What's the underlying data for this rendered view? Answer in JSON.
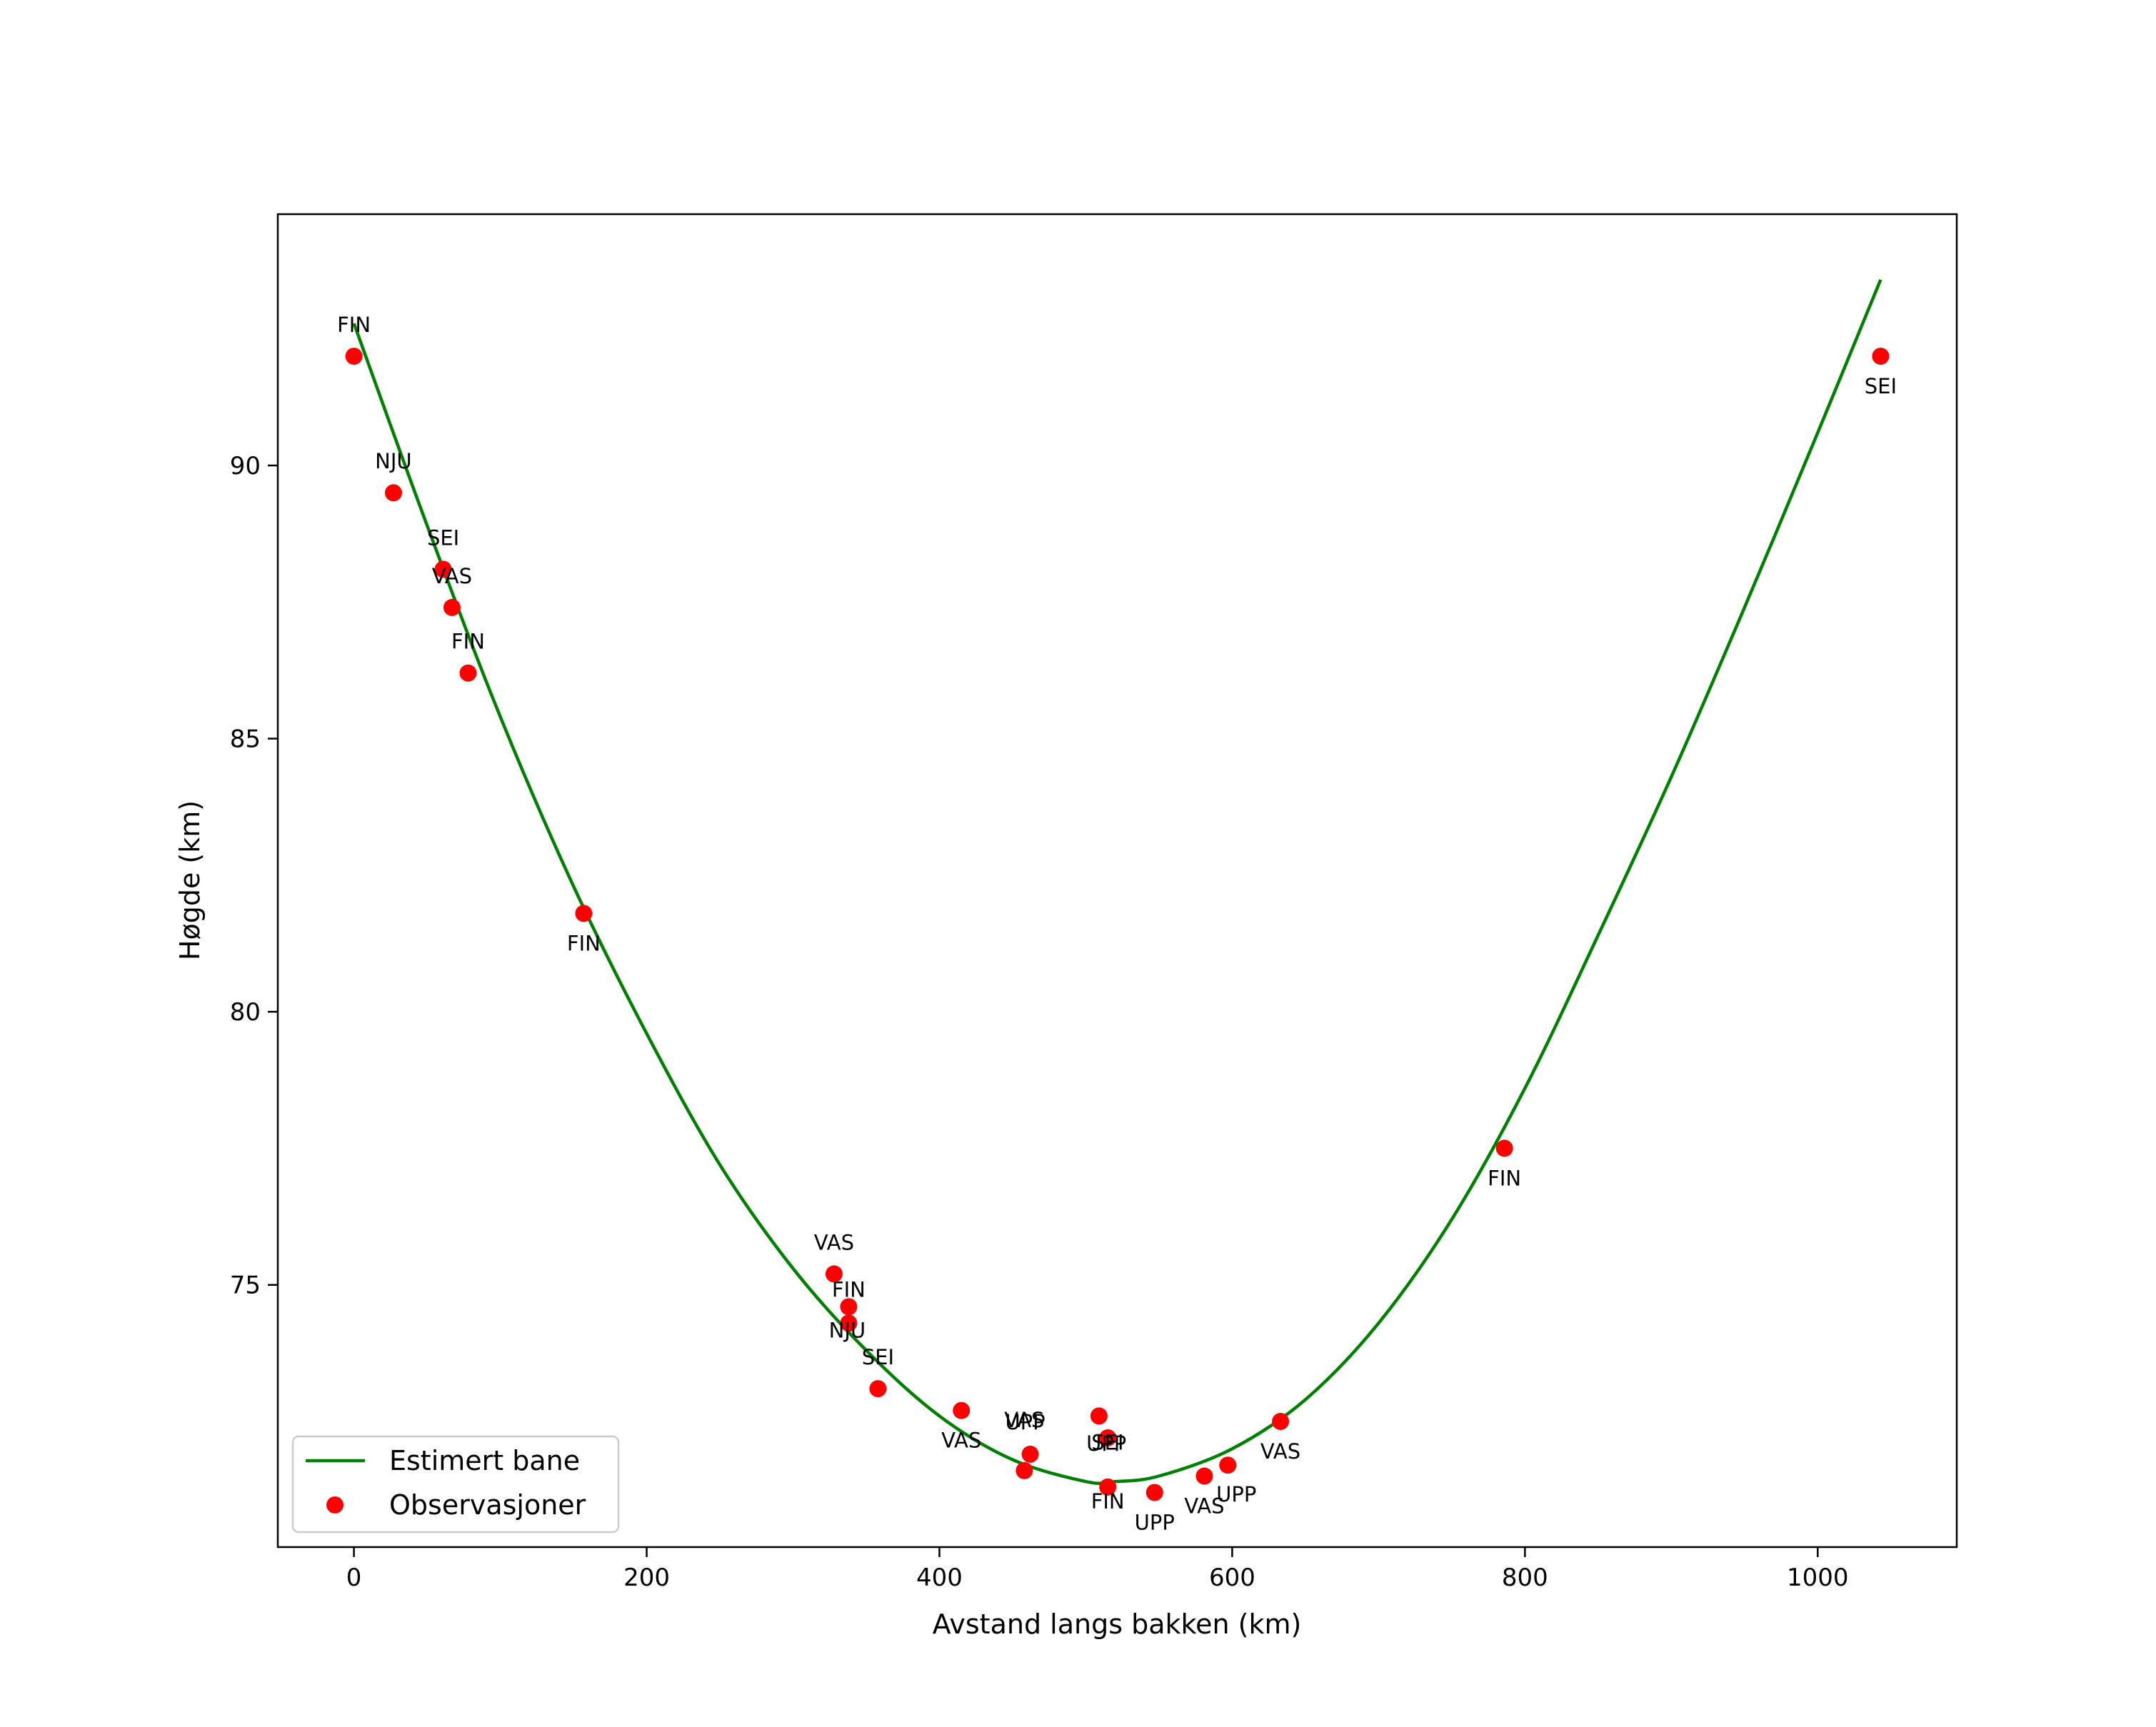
{
  "chart_data": {
    "type": "scatter",
    "title": "",
    "xlabel": "Avstand langs bakken (km)",
    "ylabel": "Høgde (km)",
    "xlim": [
      -52,
      1095
    ],
    "ylim": [
      70.2,
      94.6
    ],
    "xticks": [
      0,
      200,
      400,
      600,
      800,
      1000
    ],
    "yticks": [
      75,
      80,
      85,
      90
    ],
    "grid": false,
    "legend_position": "lower-left",
    "colors": {
      "line": "#008000",
      "points": "#ff0000",
      "axes": "#000000"
    },
    "series": [
      {
        "name": "Estimert bane",
        "kind": "line",
        "x": [
          0,
          50,
          100,
          150,
          200,
          250,
          300,
          350,
          400,
          450,
          500,
          520,
          550,
          600,
          650,
          700,
          750,
          800,
          850,
          900,
          950,
          1000,
          1043
        ],
        "y": [
          92.6,
          88.9,
          85.4,
          82.3,
          79.6,
          77.2,
          75.3,
          73.8,
          72.6,
          71.8,
          71.4,
          71.4,
          71.5,
          72.0,
          72.9,
          74.3,
          76.2,
          78.6,
          81.4,
          84.3,
          87.4,
          90.6,
          93.4
        ]
      },
      {
        "name": "Observasjoner",
        "kind": "scatter",
        "points": [
          {
            "x": 0,
            "y": 92.0,
            "label": "FIN"
          },
          {
            "x": 27,
            "y": 89.5,
            "label": "NJU"
          },
          {
            "x": 61,
            "y": 88.1,
            "label": "SEI"
          },
          {
            "x": 67,
            "y": 87.4,
            "label": "VAS"
          },
          {
            "x": 78,
            "y": 86.2,
            "label": "FIN"
          },
          {
            "x": 157,
            "y": 81.8,
            "label": "FIN"
          },
          {
            "x": 328,
            "y": 75.2,
            "label": "VAS"
          },
          {
            "x": 338,
            "y": 74.6,
            "label": "FIN"
          },
          {
            "x": 338,
            "y": 74.3,
            "label": "NJU"
          },
          {
            "x": 358,
            "y": 73.1,
            "label": "SEI"
          },
          {
            "x": 415,
            "y": 72.7,
            "label": "VAS"
          },
          {
            "x": 458,
            "y": 71.6,
            "label": "VAS"
          },
          {
            "x": 462,
            "y": 71.9,
            "label": "UPP"
          },
          {
            "x": 509,
            "y": 72.6,
            "label": "SEI"
          },
          {
            "x": 515,
            "y": 72.2,
            "label": "UPP"
          },
          {
            "x": 515,
            "y": 71.3,
            "label": "FIN"
          },
          {
            "x": 547,
            "y": 71.2,
            "label": "UPP"
          },
          {
            "x": 581,
            "y": 71.5,
            "label": "VAS"
          },
          {
            "x": 597,
            "y": 71.7,
            "label": "UPP"
          },
          {
            "x": 633,
            "y": 72.5,
            "label": "VAS"
          },
          {
            "x": 786,
            "y": 77.5,
            "label": "FIN"
          },
          {
            "x": 1043,
            "y": 92.0,
            "label": "SEI"
          }
        ]
      }
    ]
  }
}
